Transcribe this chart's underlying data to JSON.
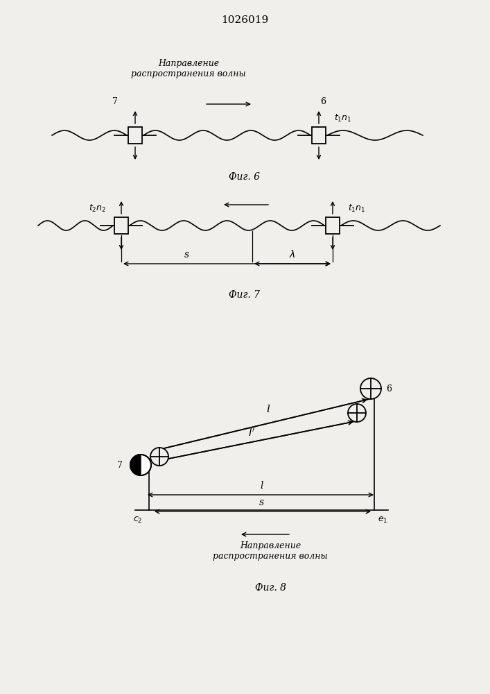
{
  "title": "1026019",
  "fig6_label": "Фиг. 6",
  "fig7_label": "Фиг. 7",
  "fig8_label": "Фиг. 8",
  "direction_text": "Направление\nраспространения волны",
  "bg_color": "#f0efeb"
}
